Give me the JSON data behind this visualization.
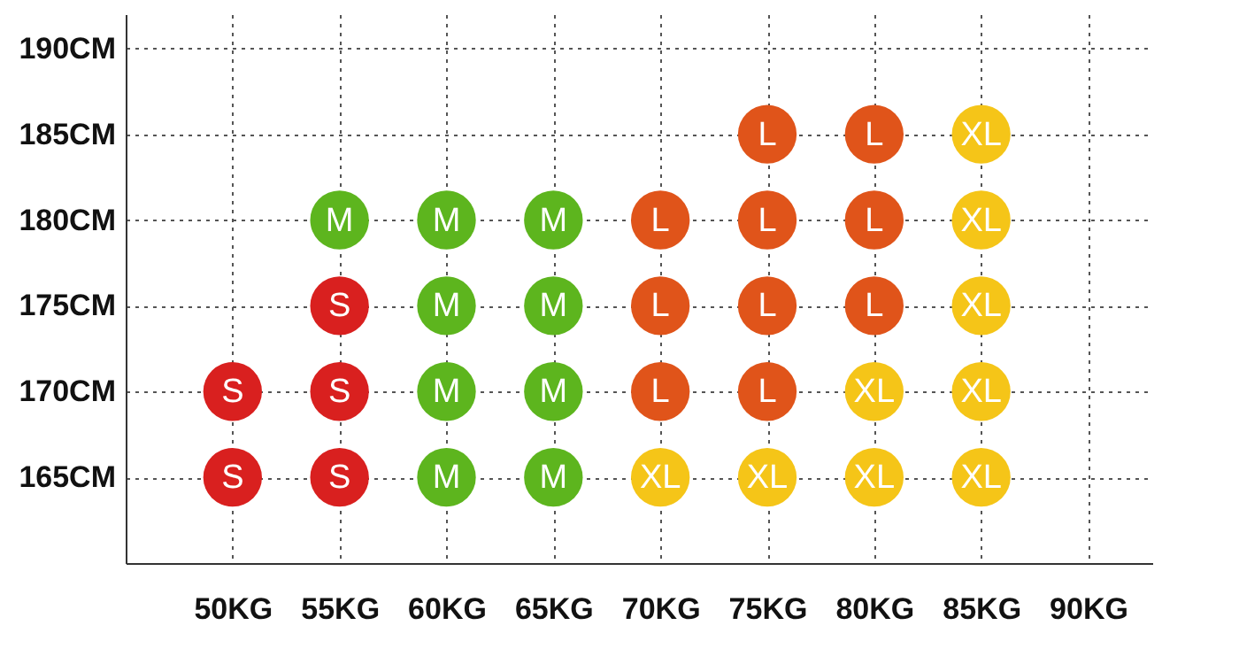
{
  "chart_data": {
    "type": "scatter",
    "marker": "circle",
    "grid": true,
    "xlim": [
      45,
      93
    ],
    "ylim": [
      160,
      192
    ],
    "xticks": [
      {
        "value": 50,
        "label": "50KG"
      },
      {
        "value": 55,
        "label": "55KG"
      },
      {
        "value": 60,
        "label": "60KG"
      },
      {
        "value": 65,
        "label": "65KG"
      },
      {
        "value": 70,
        "label": "70KG"
      },
      {
        "value": 75,
        "label": "75KG"
      },
      {
        "value": 80,
        "label": "80KG"
      },
      {
        "value": 85,
        "label": "85KG"
      },
      {
        "value": 90,
        "label": "90KG"
      }
    ],
    "yticks": [
      {
        "value": 165,
        "label": "165CM"
      },
      {
        "value": 170,
        "label": "170CM"
      },
      {
        "value": 175,
        "label": "175CM"
      },
      {
        "value": 180,
        "label": "180CM"
      },
      {
        "value": 185,
        "label": "185CM"
      },
      {
        "value": 190,
        "label": "190CM"
      }
    ],
    "series": [
      {
        "name": "S",
        "color": "#d9201f",
        "x": [
          50,
          50,
          55,
          55,
          55
        ],
        "values": [
          170,
          165,
          175,
          170,
          165
        ]
      },
      {
        "name": "M",
        "color": "#5db51e",
        "x": [
          55,
          60,
          60,
          60,
          60,
          65,
          65,
          65,
          65
        ],
        "values": [
          180,
          180,
          175,
          170,
          165,
          180,
          175,
          170,
          165
        ]
      },
      {
        "name": "L",
        "color": "#e0541a",
        "x": [
          70,
          70,
          70,
          75,
          75,
          75,
          75,
          80,
          80,
          80
        ],
        "values": [
          180,
          175,
          170,
          185,
          180,
          175,
          170,
          185,
          180,
          175
        ]
      },
      {
        "name": "XL",
        "color": "#f5c518",
        "x": [
          70,
          75,
          80,
          80,
          85,
          85,
          85,
          85,
          85
        ],
        "values": [
          165,
          165,
          170,
          165,
          185,
          180,
          175,
          170,
          165
        ]
      }
    ]
  }
}
